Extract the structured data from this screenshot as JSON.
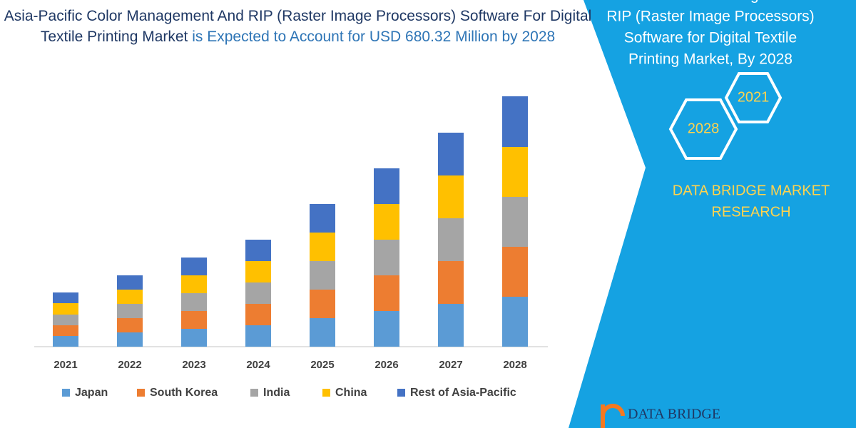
{
  "chart_data": {
    "type": "stacked_bar",
    "title": "Asia-Pacific Color Management And RIP (Raster Image Processors) Software For Digital Textile Printing Market",
    "subtitle": "is Expected to Account for USD 680.32 Million by 2028",
    "categories": [
      "2021",
      "2022",
      "2023",
      "2024",
      "2025",
      "2026",
      "2027",
      "2028"
    ],
    "series": [
      {
        "name": "Japan",
        "color": "#5b9bd5",
        "values": [
          15,
          20,
          25,
          30,
          40,
          50,
          60,
          70
        ]
      },
      {
        "name": "South Korea",
        "color": "#ed7d31",
        "values": [
          15,
          20,
          25,
          30,
          40,
          50,
          60,
          70
        ]
      },
      {
        "name": "India",
        "color": "#a5a5a5",
        "values": [
          15,
          20,
          25,
          30,
          40,
          50,
          60,
          70
        ]
      },
      {
        "name": "China",
        "color": "#ffc000",
        "values": [
          16,
          20,
          25,
          30,
          40,
          50,
          60,
          70
        ]
      },
      {
        "name": "Rest of Asia-Pacific",
        "color": "#4472c4",
        "values": [
          15,
          20,
          25,
          30,
          40,
          50,
          60,
          71
        ]
      }
    ]
  },
  "side_panel": {
    "title_lines": [
      "Asia-Pacific Color Management And",
      "RIP (Raster Image Processors)",
      "Software for Digital Textile",
      "Printing Market, By 2028"
    ],
    "hex_labels": [
      "2021",
      "2028"
    ],
    "brand_lines": [
      "DATA BRIDGE MARKET",
      "RESEARCH"
    ],
    "logo": "DATA BRIDGE"
  }
}
